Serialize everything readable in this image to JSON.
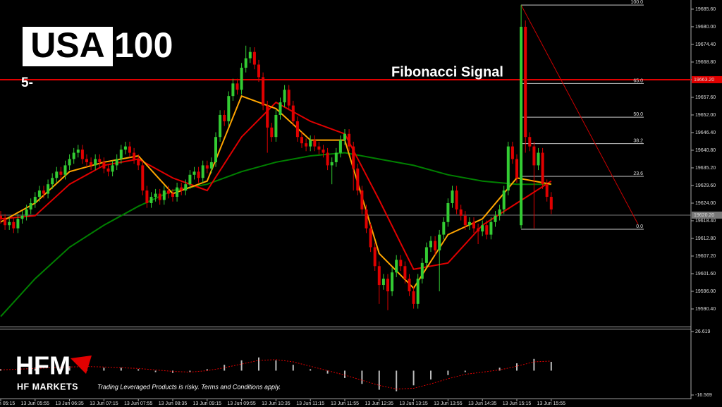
{
  "logo": {
    "boxed": "USA",
    "rest": "100"
  },
  "subtitle": "5-",
  "brand": {
    "name": "HFM",
    "full": "HF MARKETS",
    "disclaimer": "Trading Leveraged Products is risky. Terms and Conditions apply."
  },
  "chart_data": [
    {
      "type": "candlestick",
      "annotation": "Fibonacci Signal",
      "up_color": "#33cc33",
      "down_color": "#e00000",
      "open": [
        19620,
        19619,
        19617,
        19618,
        19616,
        19619,
        19620,
        19622,
        19624,
        19626,
        19628,
        19627,
        19630,
        19632,
        19634,
        19633,
        19636,
        19638,
        19640,
        19641,
        19638,
        19637,
        19636,
        19638,
        19637,
        19635,
        19634,
        19636,
        19638,
        19641,
        19642,
        19640,
        19638,
        19636,
        19628,
        19624,
        19626,
        19627,
        19625,
        19628,
        19627,
        19626,
        19629,
        19628,
        19630,
        19633,
        19634,
        19632,
        19636,
        19635,
        19637,
        19645,
        19652,
        19650,
        19658,
        19662,
        19660,
        19667,
        19670,
        19672,
        19668,
        19664,
        19655,
        19648,
        19645,
        19652,
        19656,
        19660,
        19655,
        19650,
        19645,
        19643,
        19642,
        19644,
        19642,
        19641,
        19640,
        19636,
        19637,
        19640,
        19644,
        19646,
        19642,
        19635,
        19628,
        19622,
        19616,
        19610,
        19604,
        19598,
        19600,
        19596,
        19602,
        19606,
        19604,
        19600,
        19596,
        19592,
        19600,
        19605,
        19610,
        19612,
        19609,
        19614,
        19618,
        19624,
        19628,
        19622,
        19620,
        19617,
        19618,
        19616,
        19615,
        19617,
        19614,
        19618,
        19620,
        19622,
        19628,
        19642,
        19638,
        19617,
        19680,
        19645,
        19642,
        19636,
        19640,
        19630,
        19626
      ],
      "high": [
        19621.5,
        19620.5,
        19619.5,
        19619.5,
        19620.5,
        19621.5,
        19623.5,
        19625.5,
        19627.5,
        19629.5,
        19629.5,
        19631.5,
        19633.5,
        19635.5,
        19635.5,
        19637.5,
        19639.5,
        19641.5,
        19642.5,
        19642.5,
        19639.5,
        19638.5,
        19639.5,
        19639.5,
        19638.5,
        19636.5,
        19637.5,
        19639.5,
        19642.5,
        19643.5,
        19643.5,
        19641.5,
        19639.5,
        19637.5,
        19629.5,
        19627.5,
        19628.5,
        19628.5,
        19629.5,
        19629.5,
        19628.5,
        19630.5,
        19630.5,
        19631.5,
        19634.5,
        19635.5,
        19635.5,
        19637.5,
        19637.5,
        19638.5,
        19646.5,
        19653.5,
        19653.5,
        19659.5,
        19663.5,
        19663.5,
        19668.5,
        19674,
        19673.5,
        19673.5,
        19669.5,
        19665.5,
        19656.5,
        19649.5,
        19653.5,
        19657.5,
        19661.5,
        19661.5,
        19656.5,
        19651.5,
        19646.5,
        19644.5,
        19645.5,
        19645.5,
        19643.5,
        19642.5,
        19641.5,
        19638.5,
        19641.5,
        19645.5,
        19647.5,
        19647.5,
        19643.5,
        19636.5,
        19629.5,
        19623.5,
        19617.5,
        19611.5,
        19605.5,
        19601.5,
        19601.5,
        19603.5,
        19607.5,
        19607.5,
        19605.5,
        19601.5,
        19597.5,
        19601.5,
        19606.5,
        19611.5,
        19613.5,
        19613.5,
        19615.5,
        19619.5,
        19625.5,
        19629.5,
        19629.5,
        19623.5,
        19621.5,
        19619.5,
        19619.5,
        19617.5,
        19618.5,
        19618.5,
        19619.5,
        19621.5,
        19623.5,
        19629.5,
        19643.5,
        19643.5,
        19639.5,
        19687,
        19682,
        19646.5,
        19643.5,
        19641.5,
        19641.5,
        19631.5,
        19627.5
      ],
      "low": [
        19617.5,
        19615.5,
        19615.5,
        19614.5,
        19614.5,
        19617.5,
        19618.5,
        19620.5,
        19622.5,
        19624.5,
        19625.5,
        19625.5,
        19628.5,
        19630.5,
        19631.5,
        19631.5,
        19634.5,
        19636.5,
        19638.5,
        19636.5,
        19635.5,
        19634.5,
        19634.5,
        19635.5,
        19633.5,
        19632.5,
        19632.5,
        19634.5,
        19636.5,
        19639.5,
        19638.5,
        19636.5,
        19634.5,
        19626.5,
        19622.5,
        19622.5,
        19624.5,
        19623.5,
        19623.5,
        19625.5,
        19624.5,
        19624.5,
        19626.5,
        19626.5,
        19628.5,
        19631.5,
        19630.5,
        19630.5,
        19633.5,
        19633.5,
        19635.5,
        19643.5,
        19648.5,
        19648.5,
        19656.5,
        19658.5,
        19658.5,
        19665.5,
        19668.5,
        19666.5,
        19662.5,
        19653.5,
        19640,
        19643.5,
        19643.5,
        19650.5,
        19654.5,
        19653.5,
        19648.5,
        19643.5,
        19641.5,
        19640.5,
        19640.5,
        19640.5,
        19639.5,
        19638.5,
        19634.5,
        19630,
        19635.5,
        19638.5,
        19642.5,
        19640.5,
        19628,
        19626.5,
        19620.5,
        19614.5,
        19608.5,
        19602.5,
        19592,
        19596.5,
        19590,
        19594.5,
        19600.5,
        19602.5,
        19598.5,
        19594.5,
        19590.5,
        19590.5,
        19598.5,
        19603.5,
        19608.5,
        19607.5,
        19596,
        19612.5,
        19616.5,
        19622.5,
        19620.5,
        19618.5,
        19615.5,
        19615.5,
        19614.5,
        19611,
        19613.5,
        19612.5,
        19612.5,
        19616.5,
        19618.5,
        19620.5,
        19626.5,
        19636.5,
        19630.5,
        19616,
        19640,
        19640.5,
        19616,
        19634.5,
        19628.5,
        19624.5,
        19620.5
      ],
      "close": [
        19619,
        19617,
        19618,
        19616,
        19619,
        19620,
        19622,
        19624,
        19626,
        19628,
        19627,
        19630,
        19632,
        19634,
        19633,
        19636,
        19638,
        19640,
        19641,
        19638,
        19637,
        19636,
        19638,
        19637,
        19635,
        19634,
        19636,
        19638,
        19641,
        19642,
        19640,
        19638,
        19636,
        19628,
        19624,
        19626,
        19627,
        19625,
        19628,
        19627,
        19626,
        19629,
        19628,
        19630,
        19633,
        19634,
        19632,
        19636,
        19635,
        19637,
        19645,
        19652,
        19650,
        19658,
        19662,
        19660,
        19667,
        19670,
        19672,
        19668,
        19664,
        19655,
        19648,
        19645,
        19652,
        19656,
        19660,
        19655,
        19650,
        19645,
        19643,
        19642,
        19644,
        19642,
        19641,
        19640,
        19636,
        19637,
        19640,
        19644,
        19646,
        19642,
        19635,
        19628,
        19622,
        19616,
        19610,
        19604,
        19598,
        19600,
        19596,
        19602,
        19606,
        19604,
        19600,
        19596,
        19592,
        19600,
        19605,
        19610,
        19612,
        19609,
        19614,
        19618,
        19624,
        19628,
        19622,
        19620,
        19617,
        19618,
        19616,
        19615,
        19617,
        19614,
        19618,
        19620,
        19622,
        19628,
        19642,
        19638,
        19632,
        19680,
        19645,
        19642,
        19636,
        19640,
        19630,
        19626,
        19622
      ],
      "series": [
        {
          "color": "#008000",
          "x": [
            0,
            8,
            16,
            24,
            32,
            40,
            48,
            56,
            64,
            72,
            80,
            88,
            96,
            104,
            112,
            120,
            128
          ],
          "values": [
            19588,
            19600,
            19610,
            19617,
            19623,
            19628,
            19630,
            19634,
            19637,
            19639,
            19640,
            19638,
            19636,
            19633,
            19631,
            19630,
            19630
          ]
        },
        {
          "color": "#e00000",
          "x": [
            0,
            8,
            16,
            24,
            32,
            40,
            48,
            56,
            64,
            72,
            80,
            88,
            96,
            104,
            112,
            120,
            128
          ],
          "values": [
            19619,
            19620,
            19630,
            19636,
            19638,
            19632,
            19628,
            19645,
            19656,
            19650,
            19646,
            19625,
            19603,
            19605,
            19617,
            19624,
            19631
          ]
        },
        {
          "color": "#ffa500",
          "x": [
            0,
            8,
            16,
            24,
            32,
            40,
            48,
            56,
            64,
            72,
            80,
            88,
            96,
            104,
            112,
            120,
            128
          ],
          "values": [
            19618,
            19624,
            19634,
            19637,
            19639,
            19627,
            19631,
            19658,
            19654,
            19644,
            19644,
            19608,
            19597,
            19614,
            19619,
            19632,
            19630
          ]
        }
      ],
      "hlines": [
        {
          "value": 19663.2,
          "label": "19663.20",
          "color": "#e00000"
        },
        {
          "value": 19620.2,
          "label": "19620.20",
          "color": "#777777"
        }
      ],
      "fibonacci": {
        "high": 19686.9,
        "low": 19615.7,
        "start": 121,
        "levels": [
          {
            "value": 100,
            "label": "100.0"
          },
          {
            "value": 65,
            "label": "65.0"
          },
          {
            "value": 50,
            "label": "50.0"
          },
          {
            "value": 38.2,
            "label": "38.2"
          },
          {
            "value": 23.6,
            "label": "23.6"
          },
          {
            "value": 0,
            "label": "0.0"
          }
        ]
      },
      "ylim": [
        19584.8,
        19688.5
      ],
      "yticks": [
        {
          "value": 19685.6,
          "label": "19685.60"
        },
        {
          "value": 19680,
          "label": "19680.00"
        },
        {
          "value": 19674.4,
          "label": "19674.40"
        },
        {
          "value": 19668.8,
          "label": "19668.80"
        },
        {
          "value": 19663.2,
          "label": "19663.20"
        },
        {
          "value": 19657.6,
          "label": "19657.60"
        },
        {
          "value": 19652,
          "label": "19652.00"
        },
        {
          "value": 19646.4,
          "label": "19646.40"
        },
        {
          "value": 19640.8,
          "label": "19640.80"
        },
        {
          "value": 19635.2,
          "label": "19635.20"
        },
        {
          "value": 19629.6,
          "label": "19629.60"
        },
        {
          "value": 19624,
          "label": "19624.00"
        },
        {
          "value": 19618.4,
          "label": "19618.40"
        },
        {
          "value": 19612.8,
          "label": "19612.80"
        },
        {
          "value": 19607.2,
          "label": "19607.20"
        },
        {
          "value": 19601.6,
          "label": "19601.60"
        },
        {
          "value": 19596,
          "label": "19596.00"
        },
        {
          "value": 19590.4,
          "label": "19590.40"
        }
      ],
      "xticks": [
        {
          "value": 0,
          "label": "13 Jun 05:15"
        },
        {
          "value": 8,
          "label": "13 Jun 05:55"
        },
        {
          "value": 16,
          "label": "13 Jun 06:35"
        },
        {
          "value": 24,
          "label": "13 Jun 07:15"
        },
        {
          "value": 32,
          "label": "13 Jun 07:55"
        },
        {
          "value": 40,
          "label": "13 Jun 08:35"
        },
        {
          "value": 48,
          "label": "13 Jun 09:15"
        },
        {
          "value": 56,
          "label": "13 Jun 09:55"
        },
        {
          "value": 64,
          "label": "13 Jun 10:35"
        },
        {
          "value": 72,
          "label": "13 Jun 11:15"
        },
        {
          "value": 80,
          "label": "13 Jun 11:55"
        },
        {
          "value": 88,
          "label": "13 Jun 12:35"
        },
        {
          "value": 96,
          "label": "13 Jun 13:15"
        },
        {
          "value": 104,
          "label": "13 Jun 13:55"
        },
        {
          "value": 112,
          "label": "13 Jun 14:35"
        },
        {
          "value": 120,
          "label": "13 Jun 15:15"
        },
        {
          "value": 128,
          "label": "13 Jun 15:55"
        }
      ]
    },
    {
      "type": "bar",
      "color": "#bbbbbb",
      "x": [
        0,
        4,
        8,
        12,
        16,
        20,
        24,
        28,
        32,
        36,
        40,
        44,
        48,
        52,
        56,
        60,
        64,
        68,
        72,
        76,
        80,
        84,
        88,
        92,
        96,
        100,
        104,
        108,
        112,
        116,
        120,
        124,
        128
      ],
      "values": [
        1,
        1.5,
        2,
        2.5,
        3,
        3,
        2,
        2,
        1,
        -1,
        -1.5,
        -1,
        1,
        4,
        7,
        9,
        7,
        4,
        1,
        -2,
        -5,
        -9,
        -13,
        -14,
        -10,
        -6,
        -3,
        -1,
        0,
        2,
        5,
        8,
        6
      ],
      "signal": {
        "color": "#e00000",
        "values": [
          0.5,
          1,
          1.5,
          2,
          2.5,
          2.8,
          2.5,
          2,
          1.5,
          0.5,
          -0.5,
          -1,
          0,
          2,
          4.5,
          7,
          7.5,
          6,
          3,
          0,
          -3,
          -6.5,
          -10,
          -12.5,
          -12,
          -9,
          -5.5,
          -2.5,
          -1,
          0.5,
          3,
          6,
          6.5
        ]
      },
      "ylim": [
        -16.569,
        26.619
      ],
      "yticks": [
        26.619,
        -16.569
      ]
    }
  ]
}
